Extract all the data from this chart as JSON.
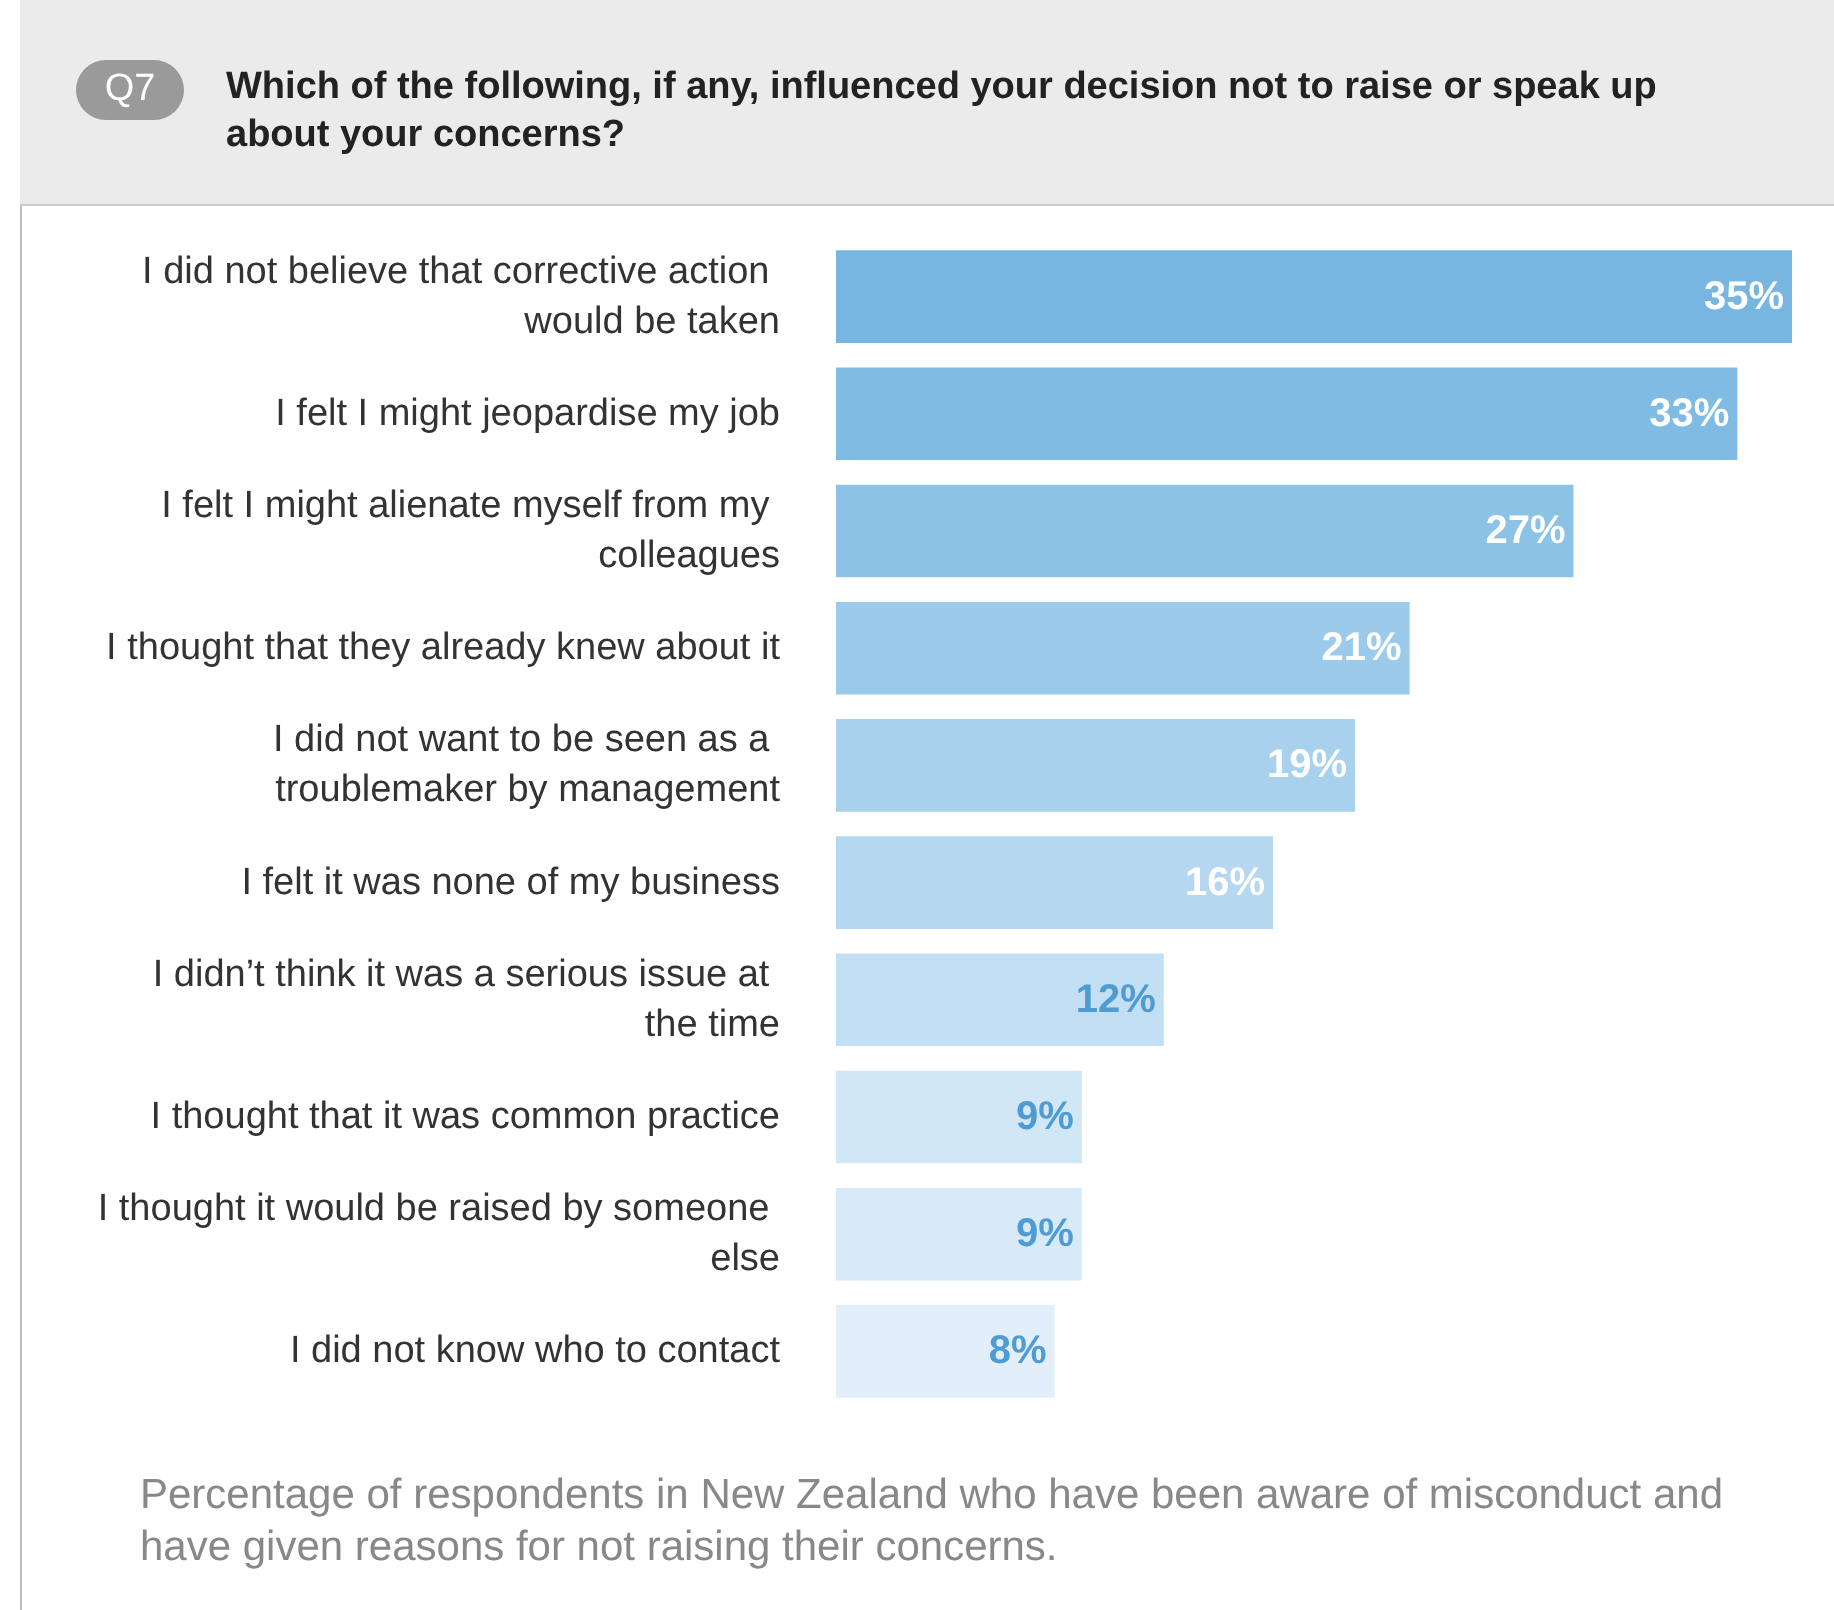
{
  "chart_data": {
    "type": "bar",
    "orientation": "horizontal",
    "title": "Which of the following, if any, influenced your decision not to raise or speak up about your concerns?",
    "categories": [
      "I did not believe that corrective action would be taken",
      "I felt I might jeopardise my job",
      "I felt I might alienate myself from my colleagues",
      "I thought that they already knew about it",
      "I did not want to be seen as a troublemaker by management",
      "I felt it was none of my business",
      "I didn’t think it was a serious issue at the time",
      "I thought that it was common practice",
      "I thought it would be raised by someone else",
      "I did not know who to contact"
    ],
    "values": [
      35,
      33,
      27,
      21,
      19,
      16,
      12,
      9,
      9,
      8
    ],
    "colors": [
      "#78b6e2",
      "#80bbe4",
      "#8dc2e7",
      "#9ccaea",
      "#a8d1ed",
      "#b5d8f0",
      "#c3dff3",
      "#d2e7f6",
      "#d8eaf7",
      "#e2effa"
    ],
    "value_labels": [
      "35%",
      "33%",
      "27%",
      "21%",
      "19%",
      "16%",
      "12%",
      "9%",
      "9%",
      "8%"
    ],
    "annotations": [
      "Q7",
      "Percentage of respondents in New Zealand who have been aware of misconduct and have given reasons for not raising their concerns."
    ]
  }
}
